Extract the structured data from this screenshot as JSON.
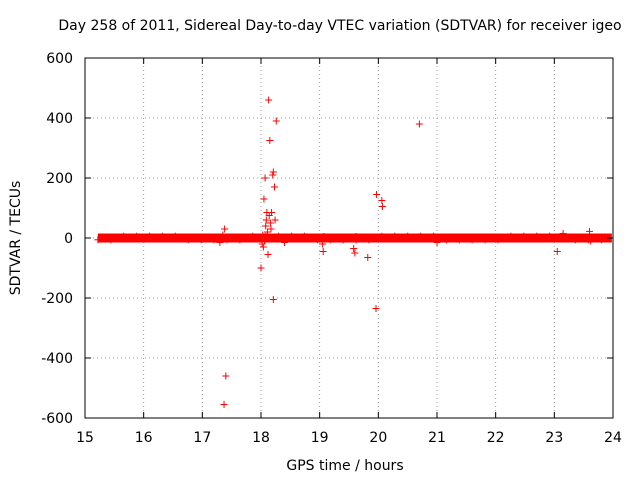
{
  "chart_data": {
    "type": "scatter",
    "title": "Day 258 of 2011, Sidereal Day-to-day VTEC variation (SDTVAR) for receiver igeo",
    "xlabel": "GPS time / hours",
    "ylabel": "SDTVAR / TECUs",
    "xlim": [
      15,
      24
    ],
    "ylim": [
      -600,
      600
    ],
    "xticks": [
      15,
      16,
      17,
      18,
      19,
      20,
      21,
      22,
      23,
      24
    ],
    "yticks": [
      -600,
      -400,
      -200,
      0,
      200,
      400,
      600
    ],
    "xtick_labels": [
      "15",
      "16",
      "17",
      "18",
      "19",
      "20",
      "21",
      "22",
      "23",
      "24"
    ],
    "ytick_labels": [
      "-600",
      "-400",
      "-200",
      "0",
      "200",
      "400",
      "600"
    ],
    "grid": true,
    "marker": "+",
    "series_color": "#ff0000",
    "band": {
      "x_start": 15.22,
      "x_end": 23.98,
      "value": 0
    },
    "outliers": [
      {
        "x": 17.38,
        "y": 30
      },
      {
        "x": 17.4,
        "y": -460
      },
      {
        "x": 17.37,
        "y": -555
      },
      {
        "x": 17.3,
        "y": -15
      },
      {
        "x": 17.35,
        "y": 10
      },
      {
        "x": 18.0,
        "y": -100
      },
      {
        "x": 18.02,
        "y": -20
      },
      {
        "x": 18.04,
        "y": -30
      },
      {
        "x": 18.05,
        "y": 130
      },
      {
        "x": 18.07,
        "y": 200
      },
      {
        "x": 18.08,
        "y": 40
      },
      {
        "x": 18.09,
        "y": 60
      },
      {
        "x": 18.1,
        "y": 85
      },
      {
        "x": 18.12,
        "y": -55
      },
      {
        "x": 18.13,
        "y": 460
      },
      {
        "x": 18.14,
        "y": 75
      },
      {
        "x": 18.15,
        "y": 325
      },
      {
        "x": 18.16,
        "y": 50
      },
      {
        "x": 18.18,
        "y": 85
      },
      {
        "x": 18.2,
        "y": 210
      },
      {
        "x": 18.21,
        "y": 220
      },
      {
        "x": 18.21,
        "y": -205
      },
      {
        "x": 18.23,
        "y": 170
      },
      {
        "x": 18.24,
        "y": 60
      },
      {
        "x": 18.26,
        "y": 390
      },
      {
        "x": 18.03,
        "y": 10
      },
      {
        "x": 18.06,
        "y": -10
      },
      {
        "x": 18.11,
        "y": 20
      },
      {
        "x": 18.17,
        "y": 30
      },
      {
        "x": 18.4,
        "y": -15
      },
      {
        "x": 19.05,
        "y": -20
      },
      {
        "x": 19.06,
        "y": -45
      },
      {
        "x": 19.07,
        "y": 5
      },
      {
        "x": 19.58,
        "y": -35
      },
      {
        "x": 19.6,
        "y": -50
      },
      {
        "x": 19.62,
        "y": 5
      },
      {
        "x": 19.82,
        "y": -65
      },
      {
        "x": 19.96,
        "y": -235
      },
      {
        "x": 19.97,
        "y": 145
      },
      {
        "x": 20.06,
        "y": 125
      },
      {
        "x": 20.07,
        "y": 105
      },
      {
        "x": 20.7,
        "y": 380
      },
      {
        "x": 21.0,
        "y": -15
      },
      {
        "x": 23.05,
        "y": -45
      },
      {
        "x": 23.15,
        "y": 15
      },
      {
        "x": 23.6,
        "y": 22
      },
      {
        "x": 23.62,
        "y": -10
      }
    ]
  }
}
